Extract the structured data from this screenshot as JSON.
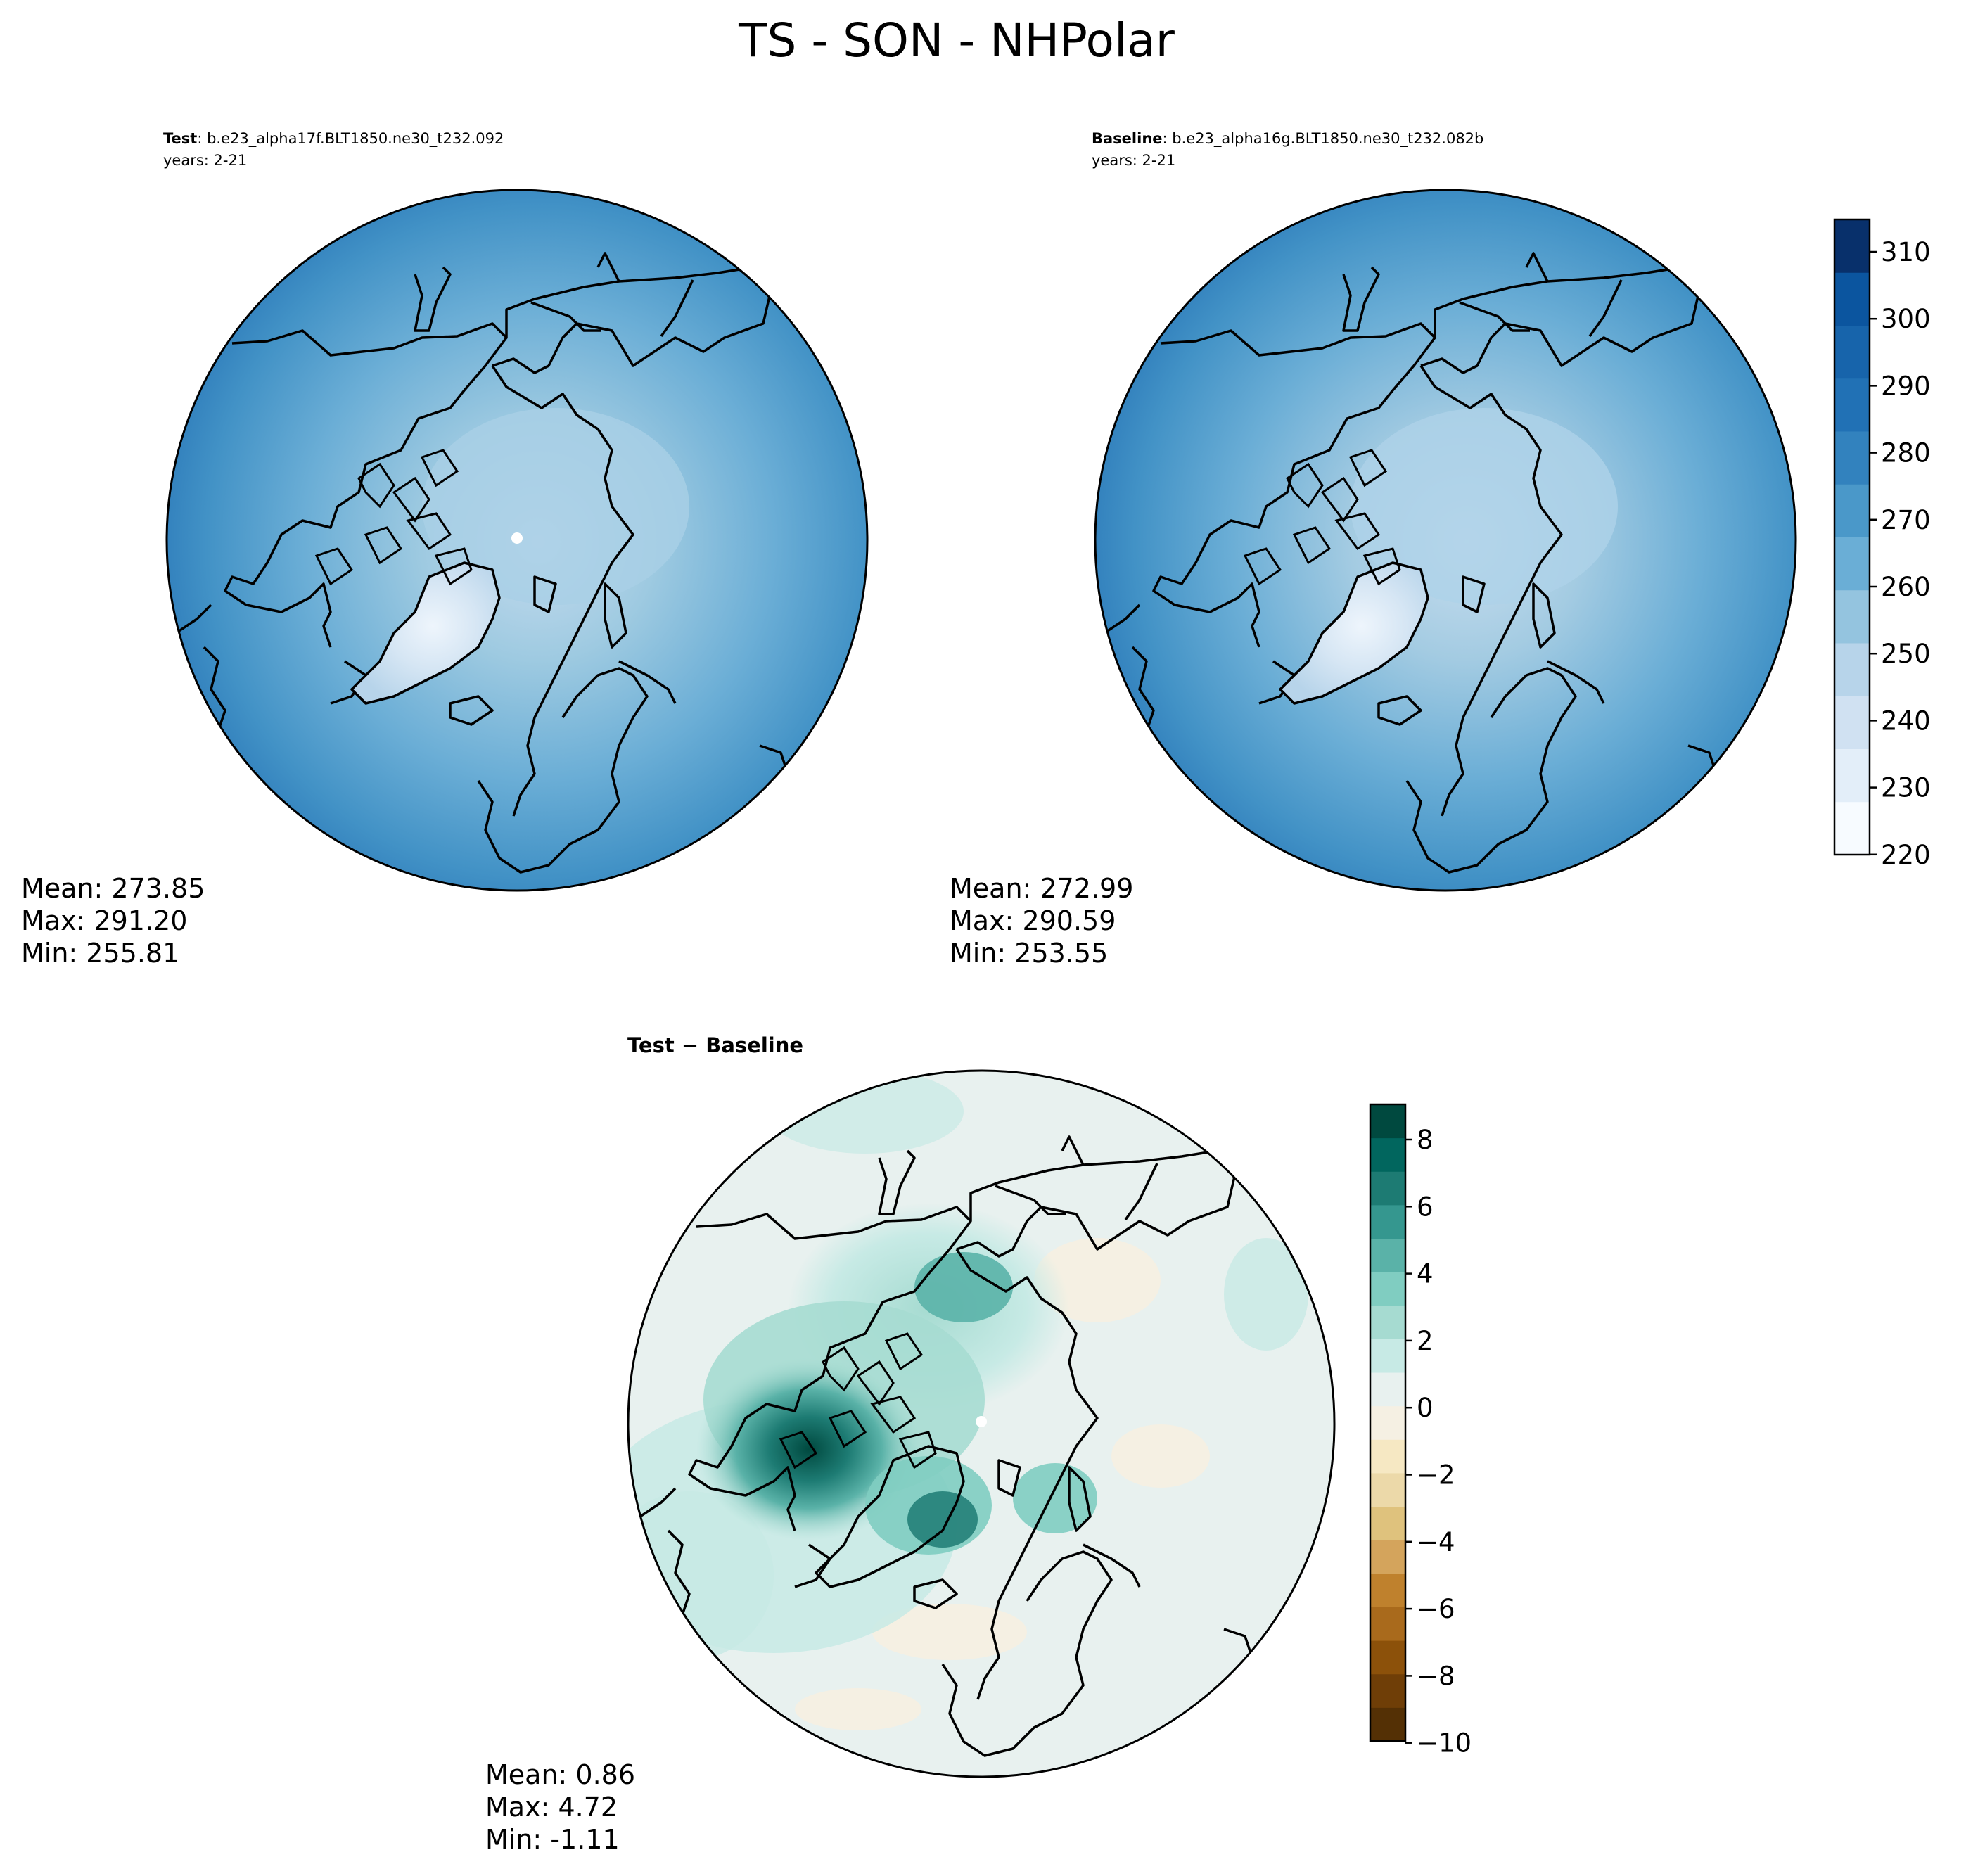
{
  "figure": {
    "title": "TS - SON - NHPolar"
  },
  "panels": [
    {
      "id": "test",
      "label_bold": "Test",
      "label_rest": ": b.e23_alpha17f.BLT1850.ne30_t232.092",
      "years": "years: 2-21",
      "stats": {
        "mean": "Mean: 273.85",
        "max": "Max: 291.20",
        "min": "Min: 255.81"
      }
    },
    {
      "id": "baseline",
      "label_bold": "Baseline",
      "label_rest": ": b.e23_alpha16g.BLT1850.ne30_t232.082b",
      "years": "years: 2-21",
      "stats": {
        "mean": "Mean: 272.99",
        "max": "Max: 290.59",
        "min": "Min: 253.55"
      }
    },
    {
      "id": "diff",
      "label_bold": "Test − Baseline",
      "stats": {
        "mean": "Mean:  0.86",
        "max": "Max:  4.72",
        "min": "Min: -1.11"
      }
    }
  ],
  "colorbars": {
    "main": {
      "ticks": [
        "310",
        "300",
        "290",
        "280",
        "270",
        "260",
        "250",
        "240",
        "230",
        "220"
      ],
      "colors": [
        "#f7fbff",
        "#e3eef9",
        "#d0e1f2",
        "#b7d4ea",
        "#94c4df",
        "#6aaed6",
        "#4a98c9",
        "#3282be",
        "#2171b5",
        "#1764ab",
        "#0b559f",
        "#08306b"
      ]
    },
    "diff": {
      "ticks": [
        "8",
        "6",
        "4",
        "2",
        "0",
        "−2",
        "−4",
        "−6",
        "−8",
        "−10"
      ],
      "colors": [
        "#543005",
        "#6f3e07",
        "#8c510a",
        "#a96a1c",
        "#bf812d",
        "#d4a45c",
        "#dfc27d",
        "#ecd9a9",
        "#f6e8c3",
        "#f5f0e3",
        "#e8f1ef",
        "#c7eae5",
        "#a6dbd1",
        "#80cdc1",
        "#5ab2a8",
        "#35978f",
        "#1d7b73",
        "#01665e",
        "#00493f"
      ]
    }
  }
}
